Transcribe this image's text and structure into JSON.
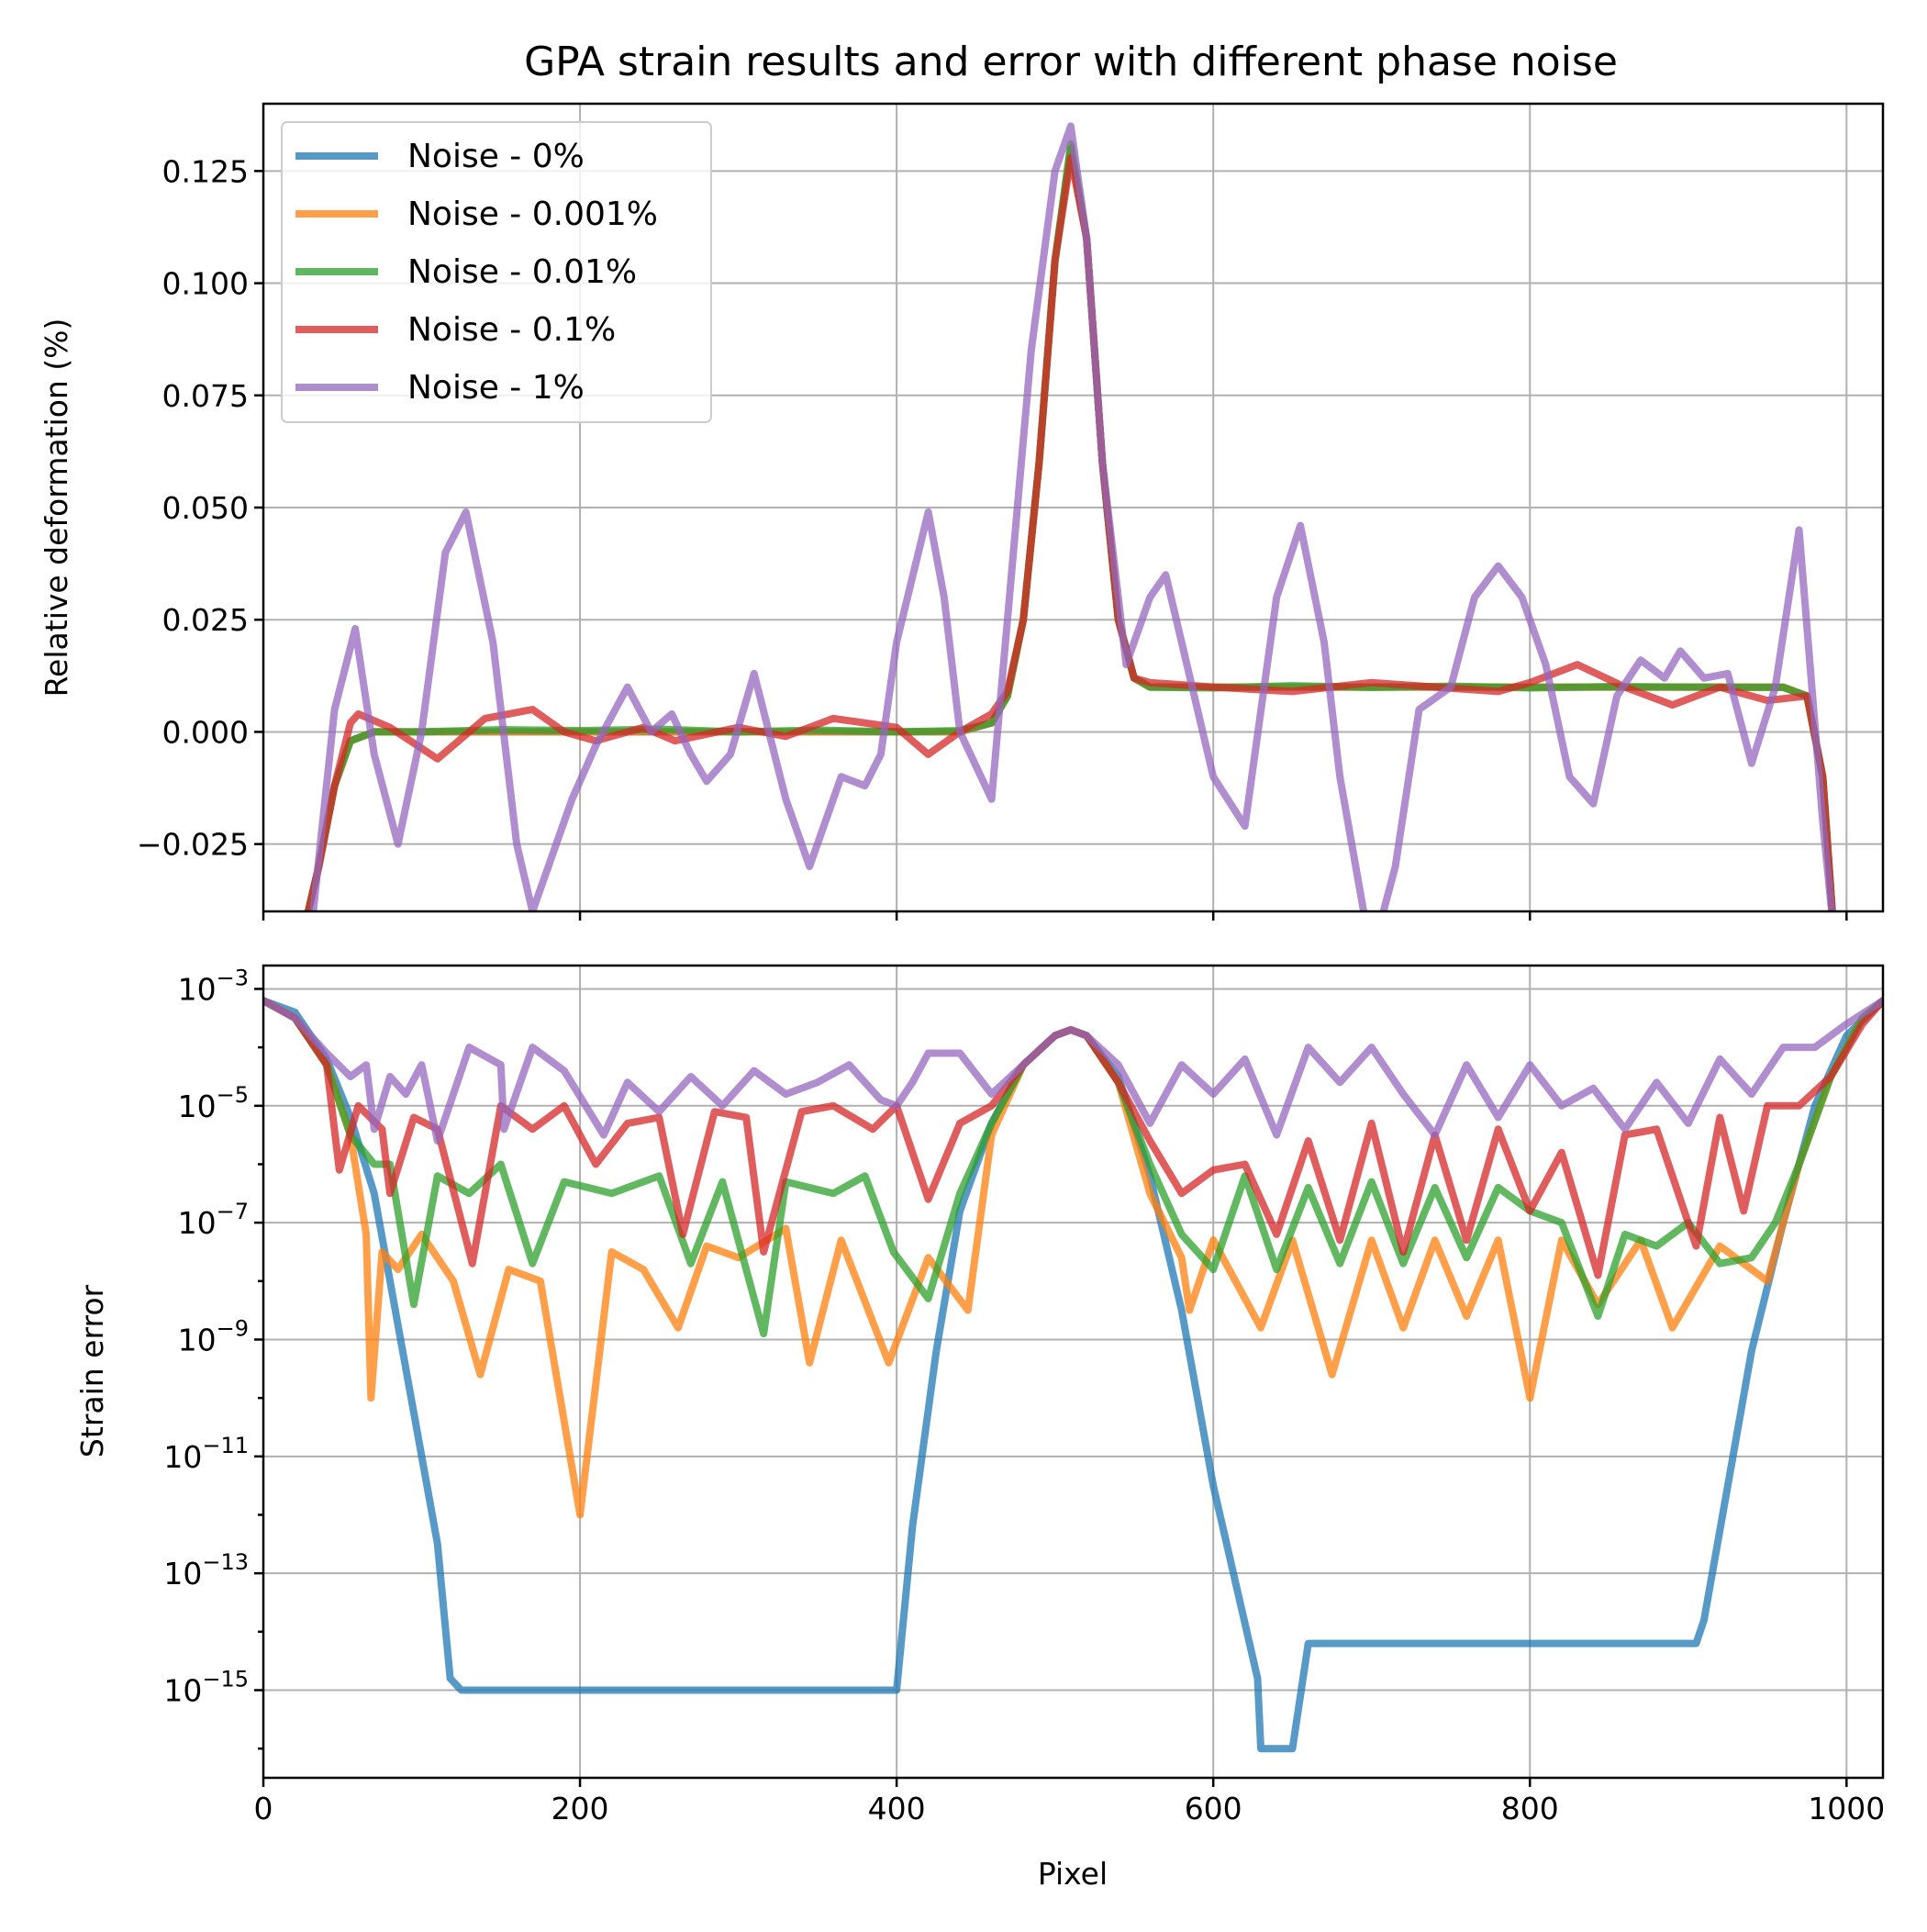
{
  "title": "GPA strain results and error with different phase noise",
  "chart_data": [
    {
      "type": "line",
      "panel": "top",
      "title": "GPA strain results and error with different phase noise",
      "xlabel": "",
      "ylabel": "Relative deformation (%)",
      "xlim": [
        0,
        1023
      ],
      "ylim": [
        -0.04,
        0.14
      ],
      "xticks": [
        0,
        200,
        400,
        600,
        800,
        1000
      ],
      "yticks": [
        -0.025,
        0.0,
        0.025,
        0.05,
        0.075,
        0.1,
        0.125
      ],
      "ytick_labels": [
        "−0.025",
        "0.000",
        "0.025",
        "0.050",
        "0.075",
        "0.100",
        "0.125"
      ],
      "grid": true,
      "legend": "top-left",
      "series": [
        {
          "name": "Noise - 0%",
          "color": "#1f77b4",
          "x": [
            25,
            35,
            45,
            55,
            70,
            100,
            200,
            300,
            400,
            440,
            460,
            470,
            480,
            490,
            500,
            510,
            520,
            530,
            540,
            550,
            560,
            600,
            700,
            800,
            900,
            960,
            975,
            985,
            992
          ],
          "y": [
            -0.045,
            -0.03,
            -0.012,
            -0.002,
            0.0,
            0.0,
            0.0,
            0.0,
            0.0,
            0.0,
            0.002,
            0.008,
            0.025,
            0.06,
            0.105,
            0.13,
            0.11,
            0.06,
            0.025,
            0.012,
            0.01,
            0.01,
            0.01,
            0.01,
            0.01,
            0.01,
            0.008,
            -0.01,
            -0.045
          ]
        },
        {
          "name": "Noise - 0.001%",
          "color": "#ff7f0e",
          "x": [
            25,
            35,
            45,
            55,
            70,
            100,
            200,
            300,
            400,
            440,
            460,
            470,
            480,
            490,
            500,
            510,
            520,
            530,
            540,
            550,
            560,
            600,
            700,
            800,
            900,
            960,
            975,
            985,
            992
          ],
          "y": [
            -0.045,
            -0.03,
            -0.012,
            -0.002,
            0.0,
            0.0,
            0.0,
            0.0,
            0.0,
            0.0,
            0.002,
            0.008,
            0.025,
            0.06,
            0.105,
            0.13,
            0.11,
            0.06,
            0.025,
            0.012,
            0.01,
            0.01,
            0.01,
            0.01,
            0.01,
            0.01,
            0.008,
            -0.01,
            -0.045
          ]
        },
        {
          "name": "Noise - 0.01%",
          "color": "#2ca02c",
          "x": [
            25,
            35,
            45,
            55,
            70,
            100,
            150,
            200,
            250,
            300,
            350,
            400,
            440,
            460,
            470,
            480,
            490,
            500,
            510,
            520,
            530,
            540,
            550,
            560,
            600,
            650,
            700,
            750,
            800,
            850,
            900,
            960,
            975,
            985,
            992
          ],
          "y": [
            -0.045,
            -0.03,
            -0.012,
            -0.002,
            0.0,
            0.0,
            0.0005,
            0.0003,
            0.0006,
            0.0,
            0.0004,
            0.0,
            0.0003,
            0.002,
            0.008,
            0.025,
            0.06,
            0.105,
            0.131,
            0.11,
            0.06,
            0.025,
            0.012,
            0.01,
            0.0098,
            0.0103,
            0.0099,
            0.0102,
            0.0098,
            0.0101,
            0.01,
            0.0099,
            0.008,
            -0.01,
            -0.045
          ]
        },
        {
          "name": "Noise - 0.1%",
          "color": "#d62728",
          "x": [
            25,
            35,
            45,
            55,
            60,
            80,
            110,
            140,
            170,
            190,
            210,
            240,
            260,
            300,
            330,
            360,
            400,
            420,
            440,
            460,
            470,
            480,
            490,
            500,
            510,
            520,
            530,
            540,
            550,
            560,
            600,
            650,
            700,
            740,
            780,
            800,
            830,
            860,
            890,
            920,
            950,
            975,
            985,
            992
          ],
          "y": [
            -0.045,
            -0.03,
            -0.012,
            0.002,
            0.004,
            0.001,
            -0.006,
            0.003,
            0.005,
            0.0,
            -0.002,
            0.001,
            -0.002,
            0.001,
            -0.001,
            0.003,
            0.001,
            -0.005,
            0.0,
            0.004,
            0.009,
            0.025,
            0.06,
            0.105,
            0.128,
            0.11,
            0.06,
            0.025,
            0.012,
            0.011,
            0.01,
            0.009,
            0.011,
            0.01,
            0.009,
            0.011,
            0.015,
            0.01,
            0.006,
            0.01,
            0.007,
            0.008,
            -0.01,
            -0.045
          ]
        },
        {
          "name": "Noise - 1%",
          "color": "#9467bd",
          "x": [
            30,
            45,
            58,
            70,
            85,
            100,
            115,
            128,
            145,
            160,
            170,
            180,
            195,
            210,
            230,
            245,
            258,
            270,
            280,
            295,
            310,
            330,
            345,
            365,
            380,
            390,
            400,
            420,
            430,
            440,
            460,
            470,
            485,
            500,
            510,
            520,
            530,
            545,
            560,
            570,
            580,
            600,
            620,
            640,
            655,
            670,
            680,
            700,
            715,
            730,
            750,
            765,
            780,
            795,
            810,
            825,
            840,
            855,
            870,
            885,
            895,
            910,
            925,
            940,
            955,
            970,
            985,
            992
          ],
          "y": [
            -0.045,
            0.005,
            0.023,
            -0.005,
            -0.025,
            0.0,
            0.04,
            0.049,
            0.02,
            -0.025,
            -0.04,
            -0.03,
            -0.015,
            -0.003,
            0.01,
            0.0,
            0.004,
            -0.005,
            -0.011,
            -0.005,
            0.013,
            -0.015,
            -0.03,
            -0.01,
            -0.012,
            -0.005,
            0.02,
            0.049,
            0.03,
            0.0,
            -0.015,
            0.025,
            0.085,
            0.125,
            0.135,
            0.11,
            0.06,
            0.015,
            0.03,
            0.035,
            0.02,
            -0.01,
            -0.021,
            0.03,
            0.046,
            0.02,
            -0.01,
            -0.05,
            -0.03,
            0.005,
            0.01,
            0.03,
            0.037,
            0.03,
            0.015,
            -0.01,
            -0.016,
            0.008,
            0.016,
            0.012,
            0.018,
            0.012,
            0.013,
            -0.007,
            0.01,
            0.045,
            -0.02,
            -0.045
          ]
        }
      ]
    },
    {
      "type": "line",
      "panel": "bottom",
      "xlabel": "Pixel",
      "ylabel": "Strain error",
      "yscale": "log",
      "xlim": [
        0,
        1023
      ],
      "ylim": [
        -16.5,
        -2.6
      ],
      "xticks": [
        0,
        200,
        400,
        600,
        800,
        1000
      ],
      "xtick_labels": [
        "0",
        "200",
        "400",
        "600",
        "800",
        "1000"
      ],
      "ytick_exponents": [
        "−3",
        "−5",
        "−7",
        "−9",
        "−11",
        "−13",
        "−15"
      ],
      "grid": true,
      "series": [
        {
          "name": "Noise - 0%",
          "color": "#1f77b4",
          "value_format": "log10",
          "x": [
            0,
            20,
            40,
            55,
            70,
            90,
            110,
            118,
            125,
            400,
            410,
            425,
            440,
            460,
            480,
            500,
            510,
            520,
            540,
            560,
            580,
            600,
            628,
            630,
            650,
            660,
            905,
            910,
            925,
            940,
            960,
            980,
            1000,
            1023
          ],
          "y": [
            -3.2,
            -3.4,
            -4.2,
            -5.2,
            -6.5,
            -9.5,
            -12.5,
            -14.8,
            -15.0,
            -15.0,
            -12.2,
            -9.2,
            -6.8,
            -5.3,
            -4.3,
            -3.8,
            -3.7,
            -3.8,
            -4.5,
            -6.2,
            -8.5,
            -11.5,
            -14.8,
            -16.0,
            -16.0,
            -14.2,
            -14.2,
            -13.8,
            -11.5,
            -9.2,
            -7.0,
            -5.0,
            -3.8,
            -3.2
          ]
        },
        {
          "name": "Noise - 0.001%",
          "color": "#ff7f0e",
          "value_format": "log10",
          "x": [
            0,
            20,
            40,
            55,
            65,
            68,
            75,
            85,
            100,
            120,
            137,
            155,
            175,
            200,
            220,
            240,
            262,
            280,
            300,
            330,
            345,
            365,
            395,
            420,
            445,
            460,
            480,
            500,
            510,
            520,
            540,
            560,
            580,
            585,
            600,
            630,
            650,
            675,
            700,
            720,
            740,
            760,
            780,
            800,
            820,
            843,
            870,
            890,
            920,
            950,
            970,
            990,
            1010,
            1023
          ],
          "y": [
            -3.2,
            -3.5,
            -4.3,
            -5.5,
            -7.2,
            -10.0,
            -7.5,
            -7.8,
            -7.2,
            -8.0,
            -9.6,
            -7.8,
            -8.0,
            -12.0,
            -7.5,
            -7.8,
            -8.8,
            -7.4,
            -7.6,
            -7.1,
            -9.4,
            -7.3,
            -9.4,
            -7.6,
            -8.5,
            -5.5,
            -4.3,
            -3.8,
            -3.7,
            -3.8,
            -4.6,
            -6.5,
            -7.6,
            -8.5,
            -7.3,
            -8.8,
            -7.3,
            -9.6,
            -7.3,
            -8.8,
            -7.3,
            -8.6,
            -7.3,
            -10.0,
            -7.3,
            -8.4,
            -7.3,
            -8.8,
            -7.4,
            -8.0,
            -6.0,
            -4.5,
            -3.5,
            -3.2
          ]
        },
        {
          "name": "Noise - 0.01%",
          "color": "#2ca02c",
          "value_format": "log10",
          "x": [
            0,
            20,
            40,
            55,
            70,
            80,
            95,
            110,
            130,
            150,
            170,
            190,
            220,
            250,
            270,
            290,
            316,
            330,
            360,
            380,
            398,
            420,
            440,
            460,
            480,
            500,
            510,
            520,
            540,
            560,
            580,
            600,
            620,
            640,
            660,
            680,
            700,
            720,
            740,
            760,
            780,
            800,
            820,
            843,
            860,
            880,
            900,
            920,
            940,
            955,
            970,
            990,
            1010,
            1023
          ],
          "y": [
            -3.2,
            -3.5,
            -4.3,
            -5.5,
            -6.0,
            -6.0,
            -8.4,
            -6.2,
            -6.5,
            -6.0,
            -7.7,
            -6.3,
            -6.5,
            -6.2,
            -7.7,
            -6.3,
            -8.9,
            -6.3,
            -6.5,
            -6.2,
            -7.5,
            -8.3,
            -6.5,
            -5.3,
            -4.3,
            -3.8,
            -3.7,
            -3.8,
            -4.6,
            -6.0,
            -7.2,
            -7.8,
            -6.2,
            -7.8,
            -6.4,
            -7.7,
            -6.3,
            -7.7,
            -6.4,
            -7.6,
            -6.4,
            -6.8,
            -7.0,
            -8.6,
            -7.2,
            -7.4,
            -7.0,
            -7.7,
            -7.6,
            -7.0,
            -6.0,
            -4.5,
            -3.5,
            -3.2
          ]
        },
        {
          "name": "Noise - 0.1%",
          "color": "#d62728",
          "value_format": "log10",
          "x": [
            0,
            20,
            40,
            48,
            60,
            75,
            80,
            95,
            110,
            132,
            150,
            170,
            190,
            210,
            230,
            250,
            265,
            285,
            305,
            316,
            340,
            360,
            385,
            400,
            420,
            440,
            460,
            480,
            500,
            510,
            520,
            540,
            560,
            580,
            600,
            620,
            640,
            660,
            680,
            700,
            720,
            740,
            760,
            780,
            800,
            820,
            843,
            860,
            880,
            905,
            920,
            935,
            950,
            970,
            990,
            1010,
            1023
          ],
          "y": [
            -3.2,
            -3.5,
            -4.3,
            -6.1,
            -5.0,
            -5.4,
            -6.5,
            -5.2,
            -5.4,
            -7.7,
            -5.0,
            -5.4,
            -5.0,
            -6.0,
            -5.3,
            -5.2,
            -7.2,
            -5.1,
            -5.2,
            -7.5,
            -5.1,
            -5.0,
            -5.4,
            -5.0,
            -6.6,
            -5.3,
            -5.0,
            -4.3,
            -3.8,
            -3.7,
            -3.8,
            -4.6,
            -5.6,
            -6.5,
            -6.1,
            -6.0,
            -7.2,
            -5.6,
            -7.3,
            -5.3,
            -7.5,
            -5.5,
            -7.3,
            -5.4,
            -6.8,
            -5.8,
            -7.9,
            -5.5,
            -5.4,
            -7.4,
            -5.2,
            -6.8,
            -5.0,
            -5.0,
            -4.5,
            -3.6,
            -3.2
          ]
        },
        {
          "name": "Noise - 1%",
          "color": "#9467bd",
          "value_format": "log10",
          "x": [
            0,
            20,
            40,
            55,
            65,
            70,
            80,
            90,
            100,
            110,
            130,
            150,
            152,
            170,
            190,
            215,
            230,
            250,
            270,
            290,
            310,
            330,
            350,
            370,
            390,
            400,
            410,
            420,
            440,
            460,
            480,
            500,
            510,
            520,
            540,
            560,
            580,
            600,
            620,
            640,
            660,
            680,
            700,
            720,
            740,
            760,
            780,
            800,
            820,
            840,
            860,
            880,
            900,
            920,
            940,
            960,
            980,
            1000,
            1023
          ],
          "y": [
            -3.2,
            -3.5,
            -4.1,
            -4.5,
            -4.3,
            -5.4,
            -4.5,
            -4.8,
            -4.3,
            -5.6,
            -4.0,
            -4.3,
            -5.4,
            -4.0,
            -4.4,
            -5.5,
            -4.6,
            -5.1,
            -4.5,
            -5.0,
            -4.4,
            -4.8,
            -4.6,
            -4.3,
            -4.9,
            -5.0,
            -4.6,
            -4.1,
            -4.1,
            -4.8,
            -4.3,
            -3.8,
            -3.7,
            -3.8,
            -4.3,
            -5.3,
            -4.3,
            -4.8,
            -4.2,
            -5.5,
            -4.0,
            -4.6,
            -4.0,
            -4.8,
            -5.5,
            -4.3,
            -5.2,
            -4.3,
            -5.0,
            -4.7,
            -5.4,
            -4.6,
            -5.3,
            -4.2,
            -4.8,
            -4.0,
            -4.0,
            -3.6,
            -3.2
          ]
        }
      ]
    }
  ]
}
